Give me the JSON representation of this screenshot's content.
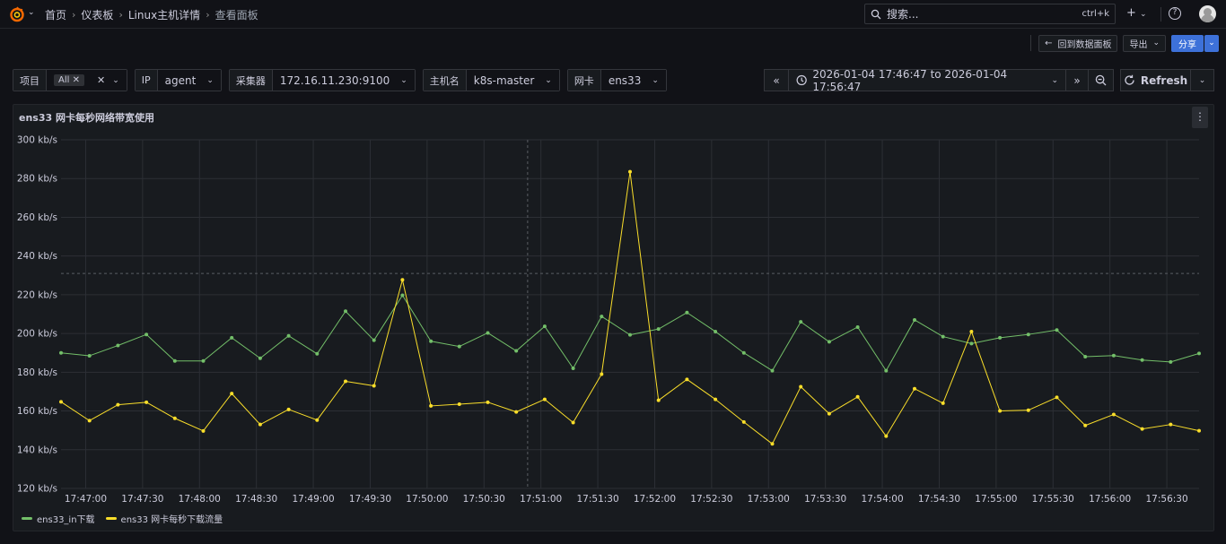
{
  "nav": {
    "breadcrumbs": [
      "首页",
      "仪表板",
      "Linux主机详情",
      "查看面板"
    ],
    "search_placeholder": "搜索...",
    "search_shortcut": "ctrl+k"
  },
  "actions": {
    "back_label": "回到数据面板",
    "export_label": "导出",
    "share_label": "分享"
  },
  "variables": [
    {
      "label": "项目",
      "value": "All"
    },
    {
      "label": "IP",
      "value": "agent"
    },
    {
      "label": "采集器",
      "value": "172.16.11.230:9100"
    },
    {
      "label": "主机名",
      "value": "k8s-master"
    },
    {
      "label": "网卡",
      "value": "ens33"
    }
  ],
  "time_range": {
    "label": "2026-01-04 17:46:47 to 2026-01-04 17:56:47",
    "refresh_label": "Refresh"
  },
  "panel": {
    "title": "ens33 网卡每秒网络带宽使用"
  },
  "colors": {
    "series_in": "#73bf69",
    "series_out": "#fade2a"
  },
  "chart_data": {
    "type": "line",
    "title": "ens33 网卡每秒网络带宽使用",
    "y_unit": "kb/s",
    "ylim": [
      120,
      300
    ],
    "y_ticks": [
      "120 kb/s",
      "140 kb/s",
      "160 kb/s",
      "180 kb/s",
      "200 kb/s",
      "220 kb/s",
      "240 kb/s",
      "260 kb/s",
      "280 kb/s",
      "300 kb/s"
    ],
    "y_tick_values": [
      120,
      140,
      160,
      180,
      200,
      220,
      240,
      260,
      280,
      300
    ],
    "x_ticks": [
      "17:47:00",
      "17:47:30",
      "17:48:00",
      "17:48:30",
      "17:49:00",
      "17:49:30",
      "17:50:00",
      "17:50:30",
      "17:51:00",
      "17:51:30",
      "17:52:00",
      "17:52:30",
      "17:53:00",
      "17:53:30",
      "17:54:00",
      "17:54:30",
      "17:55:00",
      "17:55:30",
      "17:56:00",
      "17:56:30"
    ],
    "x_start": "17:46:47",
    "x_end": "17:56:47",
    "x": [
      "17:46:47",
      "17:47:02",
      "17:47:17",
      "17:47:32",
      "17:47:47",
      "17:48:02",
      "17:48:17",
      "17:48:32",
      "17:48:47",
      "17:49:02",
      "17:49:17",
      "17:49:32",
      "17:49:47",
      "17:50:02",
      "17:50:17",
      "17:50:32",
      "17:50:47",
      "17:51:02",
      "17:51:17",
      "17:51:32",
      "17:51:47",
      "17:52:02",
      "17:52:17",
      "17:52:32",
      "17:52:47",
      "17:53:02",
      "17:53:17",
      "17:53:32",
      "17:53:47",
      "17:54:02",
      "17:54:17",
      "17:54:32",
      "17:54:47",
      "17:55:02",
      "17:55:17",
      "17:55:32",
      "17:55:47",
      "17:56:02",
      "17:56:17",
      "17:56:32",
      "17:56:47"
    ],
    "series": [
      {
        "name": "ens33_in下载",
        "color": "#73bf69",
        "values": [
          190,
          188.5,
          193.8,
          199.5,
          185.8,
          185.8,
          197.8,
          187.2,
          198.8,
          189.5,
          211.5,
          196.5,
          219.7,
          196,
          193.3,
          200.3,
          191,
          203.7,
          182,
          208.8,
          199.3,
          202.3,
          210.8,
          201,
          190,
          180.8,
          206,
          195.7,
          203.3,
          180.8,
          207,
          198.4,
          194.8,
          197.8,
          199.5,
          201.8,
          188,
          188.6,
          186.3,
          185.3,
          189.7
        ]
      },
      {
        "name": "ens33 网卡每秒下载流量",
        "color": "#fade2a",
        "values": [
          164.7,
          155,
          163.2,
          164.5,
          156.2,
          149.7,
          169,
          153,
          160.8,
          155.3,
          175.3,
          173,
          227.7,
          162.6,
          163.5,
          164.5,
          159.5,
          166,
          154,
          179,
          283.5,
          165.5,
          176.3,
          166,
          154.3,
          143,
          172.5,
          158.6,
          167.3,
          147,
          171.5,
          164,
          201,
          160,
          160.4,
          167,
          152.5,
          158.2,
          150.7,
          153,
          149.8
        ]
      }
    ],
    "threshold_line": 231,
    "cursor_x": "17:50:53",
    "legend_position": "bottom-left"
  }
}
